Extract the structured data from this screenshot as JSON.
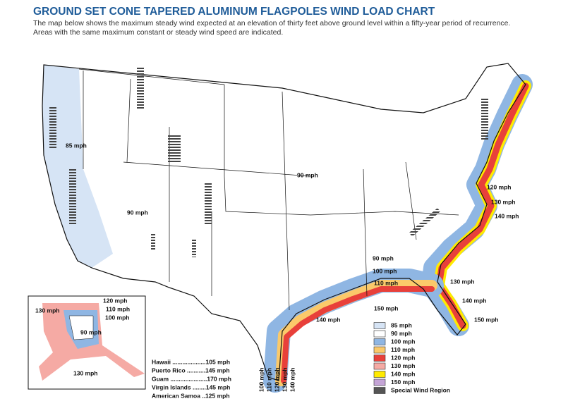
{
  "header": {
    "title": "GROUND SET CONE TAPERED ALUMINUM FLAGPOLES WIND LOAD CHART",
    "description": "The map below shows the maximum steady wind expected at an elevation of thirty feet above ground level within a fifty-year period of recurrence. Areas with the same maximum constant or steady wind speed are indicated."
  },
  "map": {
    "labels": [
      "85 mph",
      "90 mph",
      "90 mph",
      "120 mph",
      "130 mph",
      "140 mph",
      "90 mph",
      "100 mph",
      "110 mph",
      "130 mph",
      "140 mph",
      "150 mph",
      "150 mph",
      "140 mph"
    ]
  },
  "alaska_inset": {
    "labels": [
      "120 mph",
      "110 mph",
      "100 mph",
      "130 mph",
      "90 mph",
      "130 mph"
    ]
  },
  "territories": [
    "Hawaii ....................105 mph",
    "Puerto Rico ...........145 mph",
    "Guam ......................170 mph",
    "Virgin Islands ........145 mph",
    "American Samoa ..125 mph"
  ],
  "gulf_labels": [
    "100 mph",
    "110 mph",
    "120 mph",
    "130 mph",
    "140 mph"
  ],
  "legend": [
    {
      "label": "85 mph",
      "color": "#d6e4f5"
    },
    {
      "label": "90 mph",
      "color": "#ffffff"
    },
    {
      "label": "100 mph",
      "color": "#8fb6e3"
    },
    {
      "label": "110 mph",
      "color": "#fbc96a"
    },
    {
      "label": "120 mph",
      "color": "#e8403a"
    },
    {
      "label": "130 mph",
      "color": "#f5aaa4"
    },
    {
      "label": "140 mph",
      "color": "#ffea00"
    },
    {
      "label": "150 mph",
      "color": "#c4a4d6"
    },
    {
      "label": "Special Wind Region",
      "color": "#555555"
    }
  ]
}
